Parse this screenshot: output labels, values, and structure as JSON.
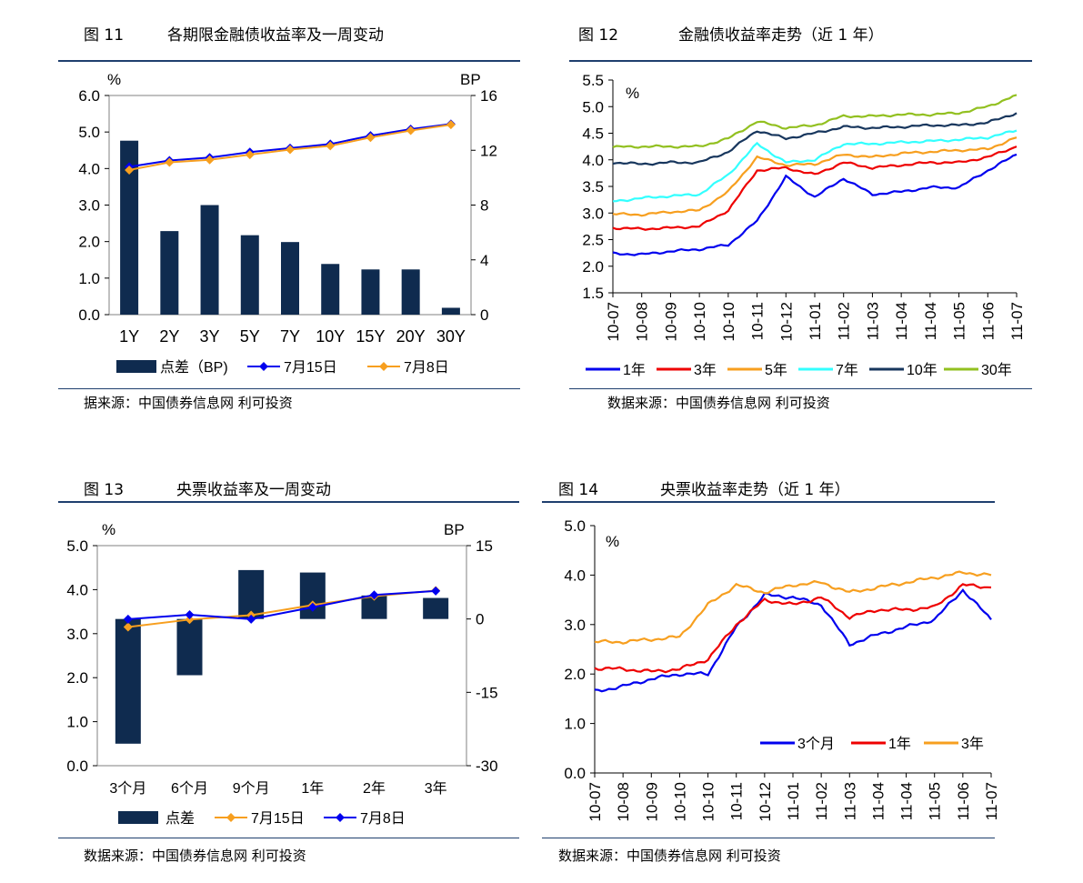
{
  "fig11": {
    "fig_label": "图 11",
    "title": "各期限金融债收益率及一周变动",
    "source": "据来源：中国债券信息网    利可投资",
    "chart_data": {
      "type": "bar+line",
      "left_unit": "%",
      "right_unit": "BP",
      "left_ylim": [
        0,
        6
      ],
      "left_ticks": [
        "0.0",
        "1.0",
        "2.0",
        "3.0",
        "4.0",
        "5.0",
        "6.0"
      ],
      "right_ylim": [
        0,
        16
      ],
      "right_ticks": [
        "0",
        "4",
        "8",
        "12",
        "16"
      ],
      "categories": [
        "1Y",
        "2Y",
        "3Y",
        "5Y",
        "7Y",
        "10Y",
        "15Y",
        "20Y",
        "30Y"
      ],
      "bar_series": {
        "name": "点差（BP)",
        "axis": "right",
        "values": [
          12.7,
          6.1,
          8.0,
          5.8,
          5.3,
          3.7,
          3.3,
          3.3,
          0.5
        ]
      },
      "series": [
        {
          "name": "7月15日",
          "axis": "left",
          "color": "#0000ee",
          "values": [
            4.05,
            4.22,
            4.3,
            4.45,
            4.56,
            4.67,
            4.9,
            5.08,
            5.22
          ]
        },
        {
          "name": "7月8日",
          "axis": "left",
          "color": "#f79f1f",
          "values": [
            3.96,
            4.17,
            4.24,
            4.38,
            4.52,
            4.62,
            4.85,
            5.04,
            5.2
          ]
        }
      ],
      "grid": false,
      "legend_position": "bottom"
    }
  },
  "fig12": {
    "fig_label": "图 12",
    "title": "金融债收益率走势（近 1 年）",
    "source": "数据来源：中国债券信息网    利可投资",
    "chart_data": {
      "type": "line",
      "unit": "%",
      "ylim": [
        1.5,
        5.5
      ],
      "y_ticks": [
        "1.5",
        "2.0",
        "2.5",
        "3.0",
        "3.5",
        "4.0",
        "4.5",
        "5.0",
        "5.5"
      ],
      "x": [
        "10-07",
        "10-08",
        "10-09",
        "10-10",
        "10-10",
        "10-11",
        "10-12",
        "11-01",
        "11-02",
        "11-03",
        "11-04",
        "11-04",
        "11-05",
        "11-06",
        "11-07"
      ],
      "series": [
        {
          "name": "1年",
          "color": "#0000ee",
          "values": [
            2.24,
            2.22,
            2.28,
            2.32,
            2.4,
            2.85,
            3.68,
            3.3,
            3.65,
            3.35,
            3.4,
            3.48,
            3.48,
            3.8,
            4.1
          ]
        },
        {
          "name": "3年",
          "color": "#ee0000",
          "values": [
            2.72,
            2.7,
            2.72,
            2.75,
            3.05,
            3.8,
            3.85,
            3.72,
            3.95,
            3.85,
            3.9,
            3.95,
            3.95,
            4.05,
            4.25
          ]
        },
        {
          "name": "5年",
          "color": "#f79f1f",
          "values": [
            2.98,
            2.97,
            3.02,
            3.05,
            3.4,
            4.05,
            3.9,
            3.92,
            4.1,
            4.05,
            4.12,
            4.15,
            4.18,
            4.2,
            4.42
          ]
        },
        {
          "name": "7年",
          "color": "#33ffff",
          "values": [
            3.22,
            3.28,
            3.32,
            3.35,
            3.72,
            4.3,
            3.95,
            4.0,
            4.3,
            4.3,
            4.33,
            4.35,
            4.38,
            4.42,
            4.55
          ]
        },
        {
          "name": "10年",
          "color": "#17365d",
          "values": [
            3.95,
            3.92,
            3.95,
            3.95,
            4.15,
            4.55,
            4.4,
            4.5,
            4.62,
            4.6,
            4.62,
            4.65,
            4.65,
            4.7,
            4.88
          ]
        },
        {
          "name": "30年",
          "color": "#92c020",
          "values": [
            4.24,
            4.25,
            4.25,
            4.25,
            4.4,
            4.72,
            4.6,
            4.65,
            4.82,
            4.82,
            4.85,
            4.85,
            4.88,
            5.0,
            5.22
          ]
        }
      ],
      "grid": false,
      "legend_position": "bottom"
    }
  },
  "fig13": {
    "fig_label": "图 13",
    "title": "央票收益率及一周变动",
    "source": "数据来源：中国债券信息网    利可投资",
    "chart_data": {
      "type": "bar+line",
      "left_unit": "%",
      "right_unit": "BP",
      "left_ylim": [
        0,
        5
      ],
      "left_ticks": [
        "0.0",
        "1.0",
        "2.0",
        "3.0",
        "4.0",
        "5.0"
      ],
      "right_ylim": [
        -30,
        15
      ],
      "right_ticks": [
        "-30",
        "-15",
        "0",
        "15"
      ],
      "categories": [
        "3个月",
        "6个月",
        "9个月",
        "1年",
        "2年",
        "3年"
      ],
      "bar_series": {
        "name": "点差",
        "axis": "right",
        "values": [
          -25.5,
          -11.5,
          10.0,
          9.5,
          4.8,
          4.3
        ]
      },
      "series": [
        {
          "name": "7月15日",
          "axis": "left",
          "color": "#f79f1f",
          "values": [
            3.15,
            3.32,
            3.42,
            3.65,
            3.85,
            3.98
          ]
        },
        {
          "name": "7月8日",
          "axis": "left",
          "color": "#0000ee",
          "values": [
            3.33,
            3.43,
            3.33,
            3.6,
            3.88,
            3.97
          ]
        }
      ],
      "grid": false,
      "legend_position": "bottom"
    }
  },
  "fig14": {
    "fig_label": "图 14",
    "title": "央票收益率走势（近 1 年）",
    "source": "数据来源：中国债券信息网    利可投资",
    "chart_data": {
      "type": "line",
      "unit": "%",
      "ylim": [
        0,
        5
      ],
      "y_ticks": [
        "0.0",
        "1.0",
        "2.0",
        "3.0",
        "4.0",
        "5.0"
      ],
      "x": [
        "10-07",
        "10-08",
        "10-09",
        "10-10",
        "10-10",
        "10-11",
        "10-12",
        "11-01",
        "11-02",
        "11-03",
        "11-04",
        "11-04",
        "11-05",
        "11-06",
        "11-07"
      ],
      "series": [
        {
          "name": "3个月",
          "color": "#0000ee",
          "values": [
            1.65,
            1.75,
            1.9,
            2.0,
            2.0,
            2.95,
            3.6,
            3.55,
            3.4,
            2.6,
            2.8,
            2.95,
            3.1,
            3.7,
            3.1
          ]
        },
        {
          "name": "1年",
          "color": "#ee0000",
          "values": [
            2.12,
            2.1,
            2.05,
            2.1,
            2.3,
            3.0,
            3.5,
            3.4,
            3.55,
            3.15,
            3.3,
            3.3,
            3.35,
            3.8,
            3.75
          ]
        },
        {
          "name": "3年",
          "color": "#f79f1f",
          "values": [
            2.65,
            2.65,
            2.7,
            2.75,
            3.4,
            3.8,
            3.65,
            3.8,
            3.85,
            3.65,
            3.75,
            3.85,
            3.95,
            4.05,
            4.0
          ]
        }
      ],
      "grid": false,
      "legend_position": "inside-bottom-right"
    }
  }
}
